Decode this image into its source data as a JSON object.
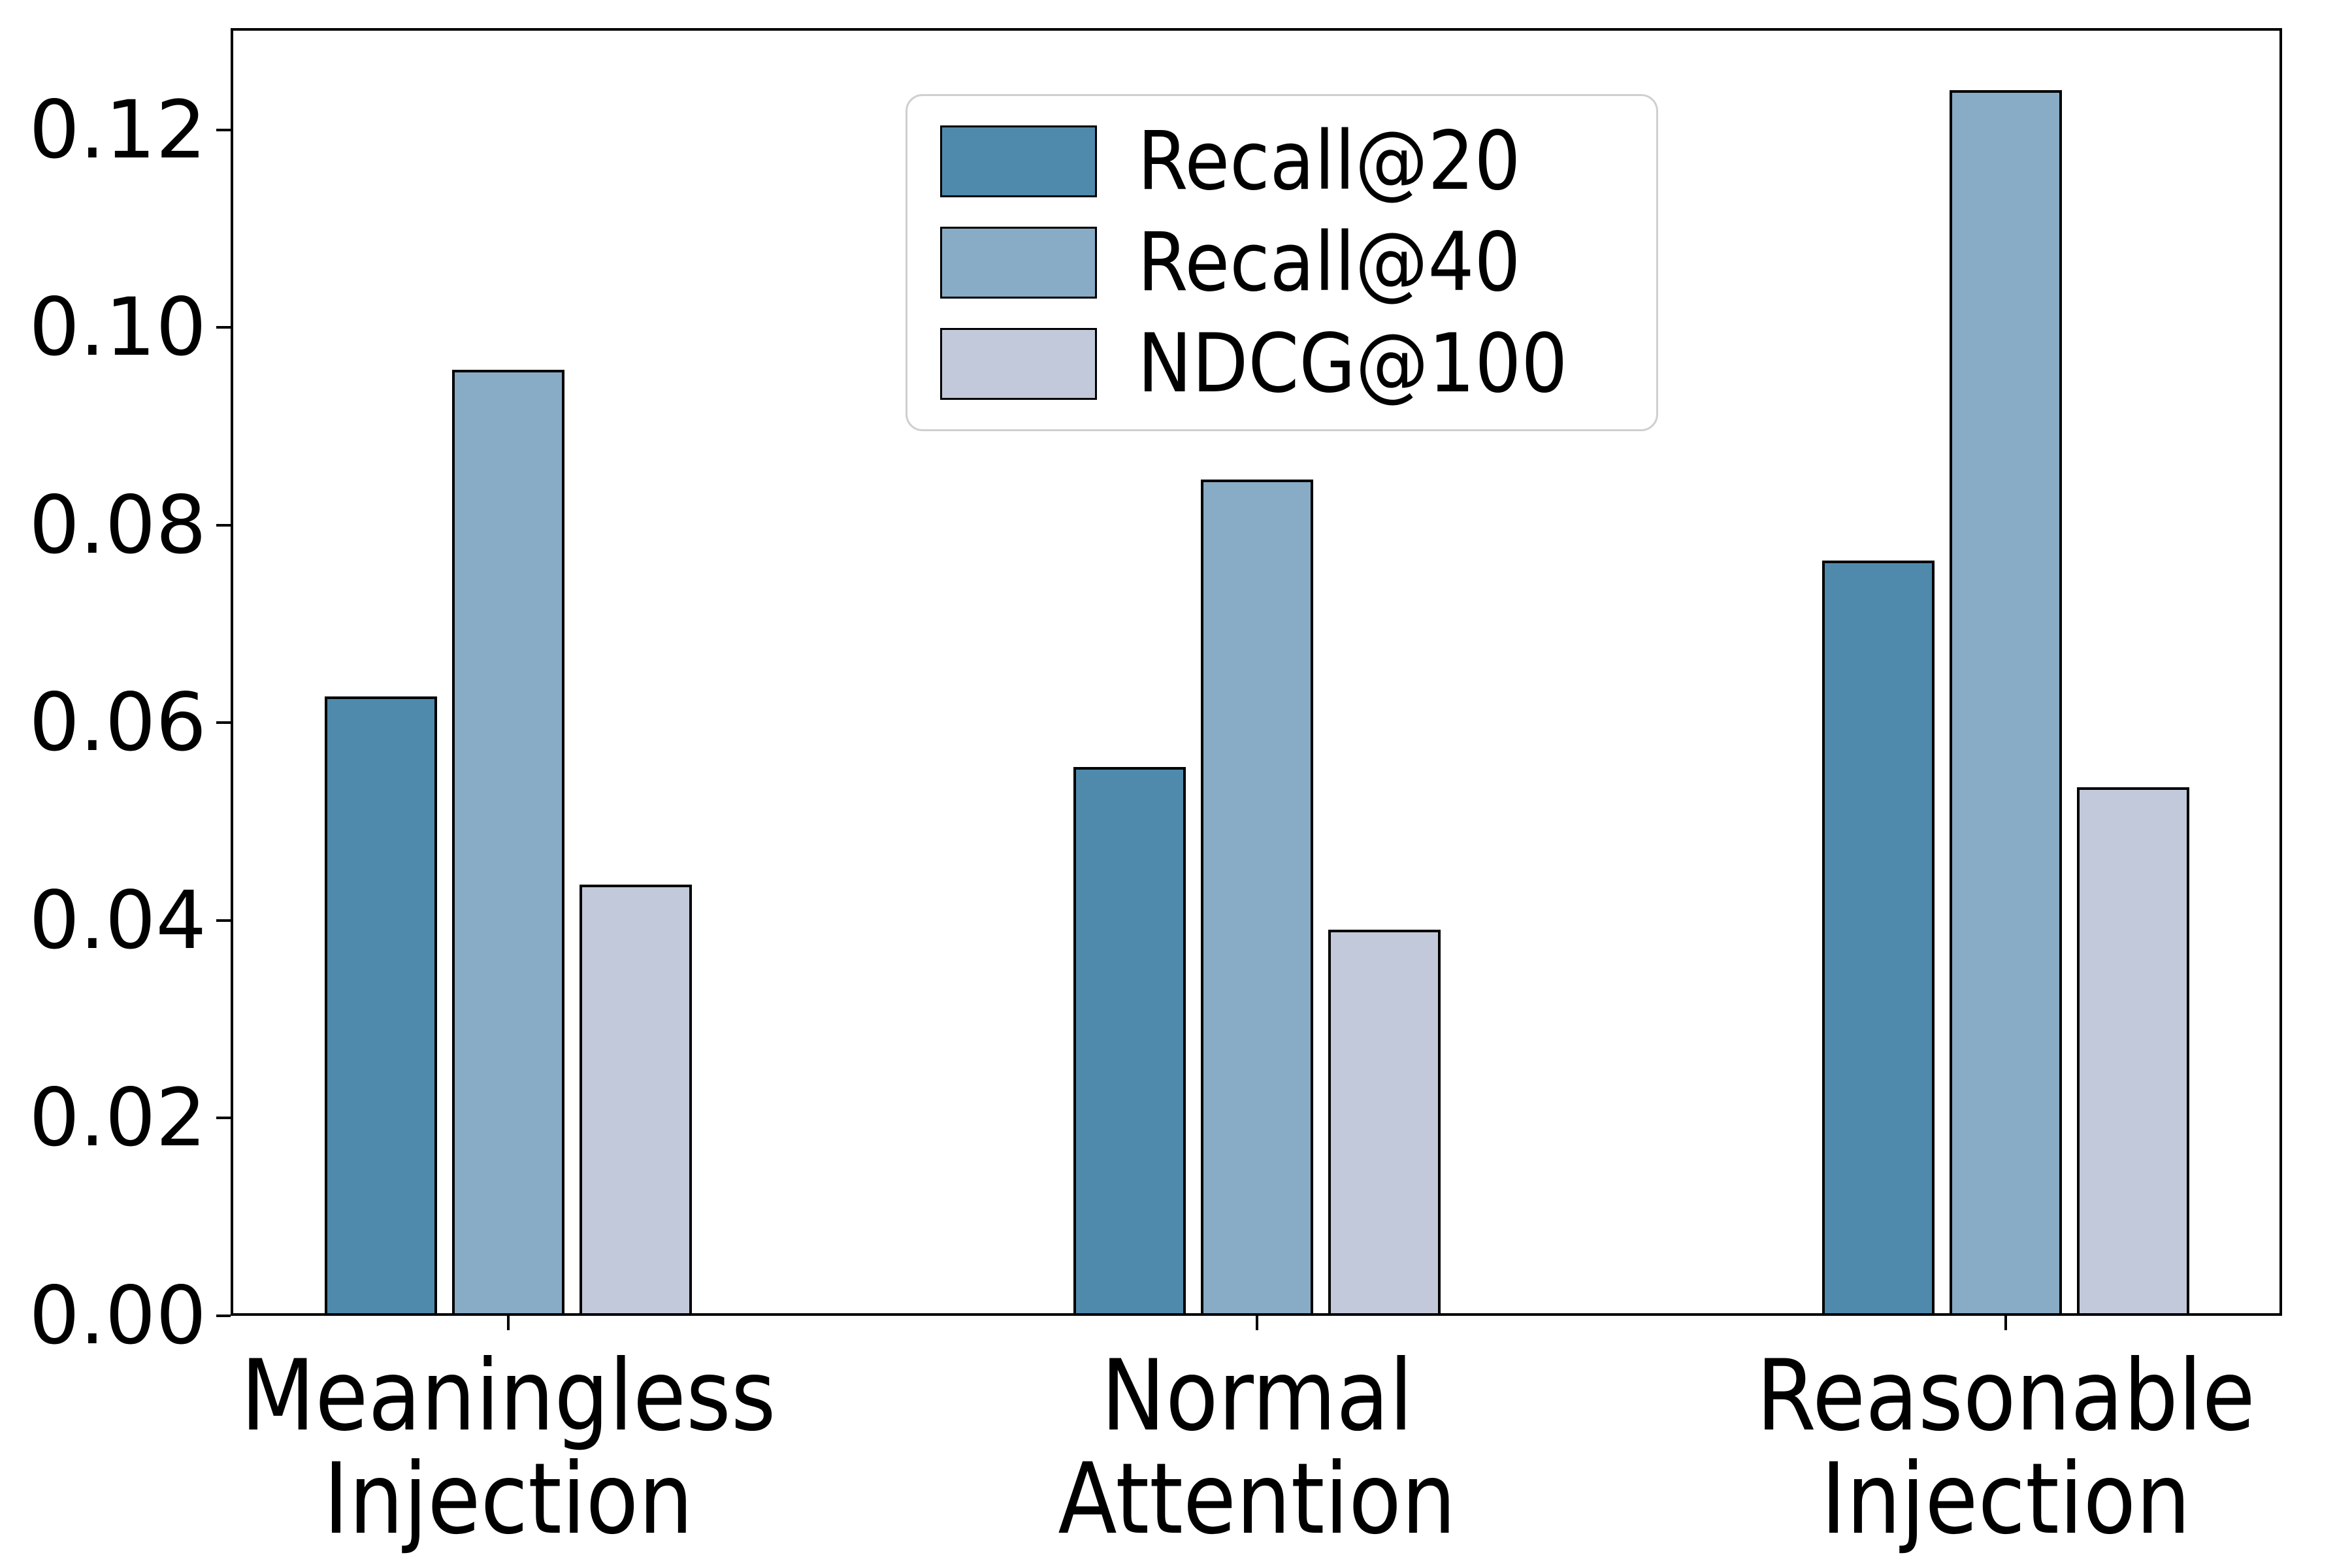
{
  "chart_data": {
    "type": "bar",
    "title": "",
    "xlabel": "",
    "ylabel": "",
    "categories": [
      [
        "Meaningless",
        "Injection"
      ],
      [
        "Normal",
        "Attention"
      ],
      [
        "Reasonable",
        "Injection"
      ]
    ],
    "series": [
      {
        "name": "Recall@20",
        "color": "#4f8aac",
        "values": [
          0.0627,
          0.0555,
          0.0764
        ]
      },
      {
        "name": "Recall@40",
        "color": "#88abc6",
        "values": [
          0.0957,
          0.0846,
          0.124
        ]
      },
      {
        "name": "NDCG@100",
        "color": "#c1c9da",
        "values": [
          0.0436,
          0.0391,
          0.0535
        ]
      }
    ],
    "bar_edge_color": "#000000",
    "ylim": [
      0,
      0.1303
    ],
    "ytick_values": [
      0.0,
      0.02,
      0.04,
      0.06,
      0.08,
      0.1,
      0.12
    ],
    "yticks": [
      "0.00",
      "0.02",
      "0.04",
      "0.06",
      "0.08",
      "0.10",
      "0.12"
    ],
    "grid": false,
    "legend_position": "upper center",
    "background_color": "#ffffff"
  }
}
